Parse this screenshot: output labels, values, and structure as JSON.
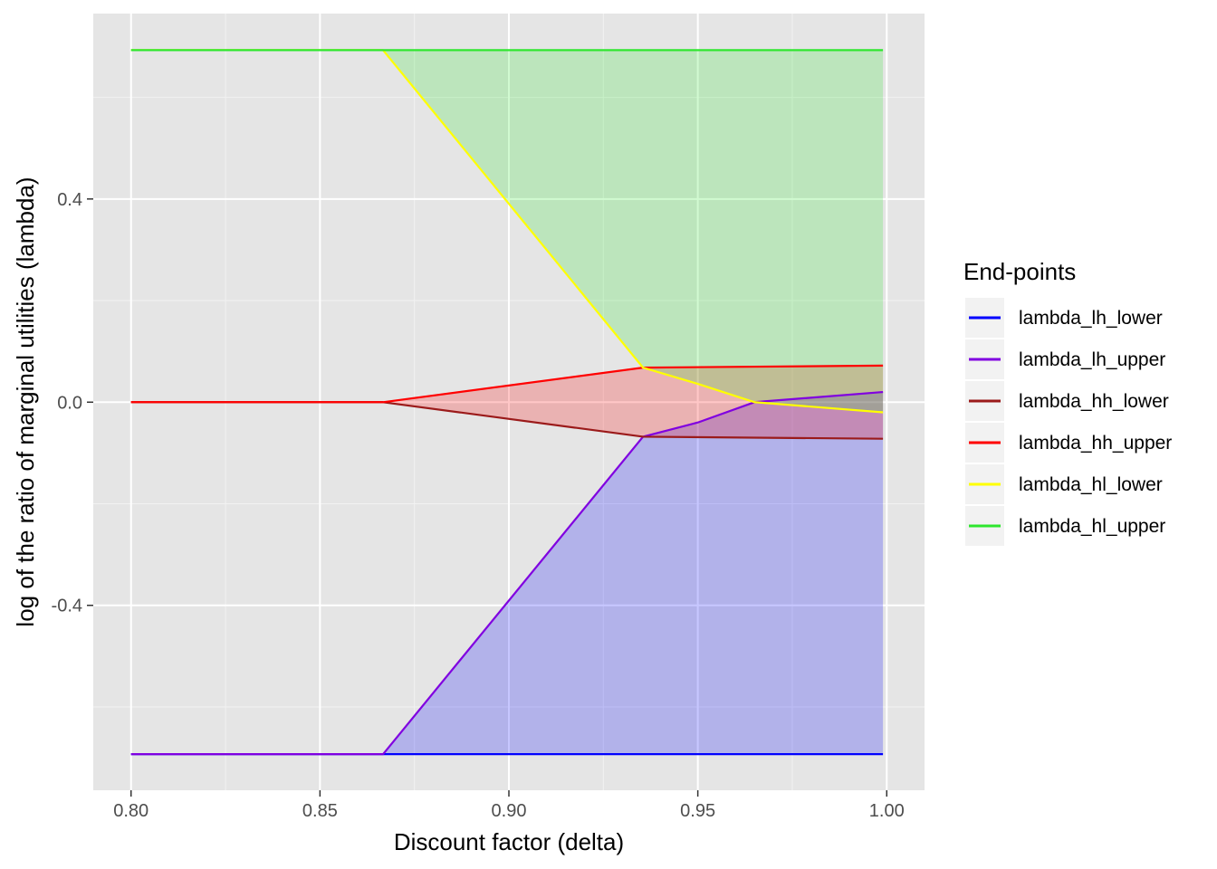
{
  "chart_data": {
    "type": "line",
    "xlabel": "Discount factor (delta)",
    "ylabel": "log of the ratio of marginal utilities (lambda)",
    "xlim": [
      0.79,
      1.01
    ],
    "ylim": [
      -0.764,
      0.765
    ],
    "x_ticks": [
      0.8,
      0.85,
      0.9,
      0.95,
      1.0
    ],
    "x_tick_labels": [
      "0.80",
      "0.85",
      "0.90",
      "0.95",
      "1.00"
    ],
    "y_ticks": [
      -0.4,
      0.0,
      0.4
    ],
    "y_tick_labels": [
      "-0.4",
      "0.0",
      "0.4"
    ],
    "x_minor": [
      0.825,
      0.875,
      0.925,
      0.975
    ],
    "y_minor": [
      -0.6,
      -0.2,
      0.2,
      0.6
    ],
    "grid": true,
    "legend_position": "right",
    "legend_title": "End-points",
    "series": [
      {
        "name": "lambda_lh_lower",
        "color": "#0000ff",
        "x": [
          0.8,
          0.8667,
          0.9355,
          0.965,
          0.999
        ],
        "y": [
          -0.693,
          -0.693,
          -0.693,
          -0.693,
          -0.693
        ]
      },
      {
        "name": "lambda_lh_upper",
        "color": "#8000e0",
        "x": [
          0.8,
          0.8667,
          0.9355,
          0.95,
          0.965,
          0.999
        ],
        "y": [
          -0.693,
          -0.693,
          -0.068,
          -0.04,
          0.0,
          0.02
        ]
      },
      {
        "name": "lambda_hh_lower",
        "color": "#9b1a1a",
        "x": [
          0.8,
          0.8667,
          0.9355,
          0.999
        ],
        "y": [
          0.0,
          0.0,
          -0.068,
          -0.072
        ]
      },
      {
        "name": "lambda_hh_upper",
        "color": "#ff0000",
        "x": [
          0.8,
          0.8667,
          0.9355,
          0.999
        ],
        "y": [
          0.0,
          0.0,
          0.068,
          0.072
        ]
      },
      {
        "name": "lambda_hl_lower",
        "color": "#ffff00",
        "x": [
          0.8,
          0.8667,
          0.9355,
          0.95,
          0.965,
          0.999
        ],
        "y": [
          0.693,
          0.693,
          0.068,
          0.036,
          0.0,
          -0.02
        ]
      },
      {
        "name": "lambda_hl_upper",
        "color": "#2ee62e",
        "x": [
          0.8,
          0.8667,
          0.9355,
          0.999
        ],
        "y": [
          0.693,
          0.693,
          0.693,
          0.693
        ]
      }
    ],
    "ribbons": [
      {
        "fill": "#0000ff",
        "opacity": 0.22,
        "lower": "lambda_lh_lower",
        "upper": "lambda_lh_upper"
      },
      {
        "fill": "#ff0000",
        "opacity": 0.22,
        "lower": "lambda_hh_lower",
        "upper": "lambda_hh_upper"
      },
      {
        "fill": "#2ee62e",
        "opacity": 0.22,
        "lower": "lambda_hl_lower",
        "upper": "lambda_hl_upper"
      }
    ]
  }
}
